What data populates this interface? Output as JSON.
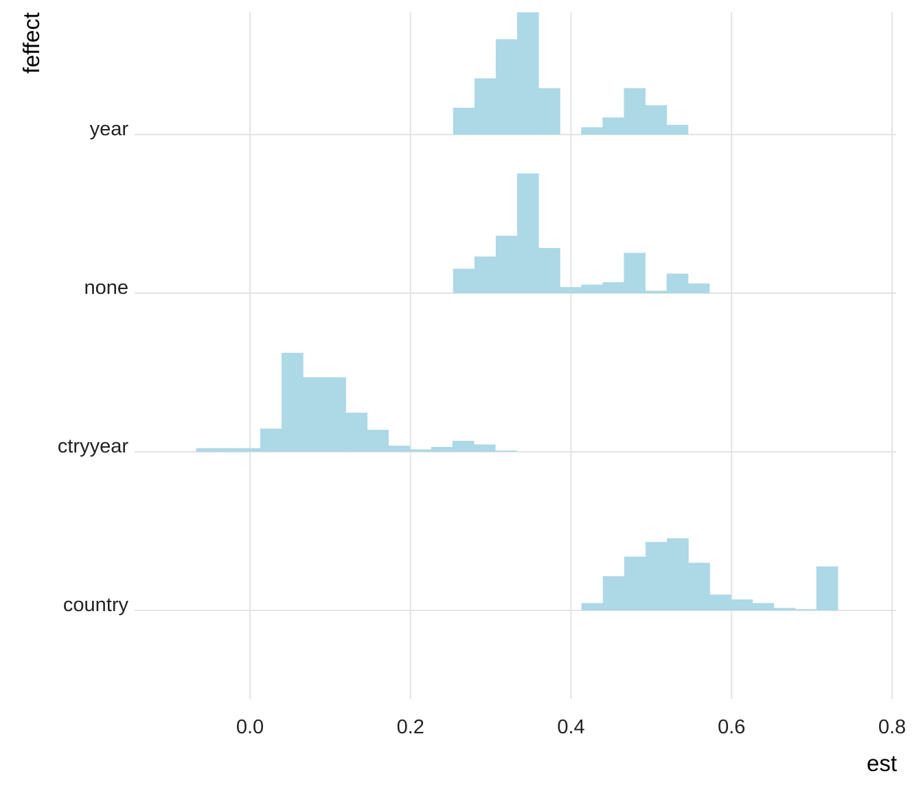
{
  "chart_data": {
    "type": "ridgeline-histogram",
    "title": "",
    "xlabel": "est",
    "ylabel": "feffect",
    "xlim": [
      -0.2,
      0.8
    ],
    "x_ticks": [
      "0.0",
      "0.2",
      "0.4",
      "0.6",
      "0.8"
    ],
    "x_tick_values": [
      0.0,
      0.2,
      0.4,
      0.6,
      0.8
    ],
    "bin_width": 0.0266,
    "bar_color": "#add8e6",
    "grid": true,
    "legend": "none",
    "groups": [
      {
        "name": "year",
        "bin_start": 0.253,
        "counts": [
          0.22,
          0.46,
          0.78,
          1.0,
          0.38,
          0,
          0.06,
          0.14,
          0.38,
          0.24,
          0.08
        ]
      },
      {
        "name": "none",
        "bin_start": 0.253,
        "counts": [
          0.2,
          0.3,
          0.47,
          0.98,
          0.37,
          0.05,
          0.07,
          0.09,
          0.33,
          0.02,
          0.16,
          0.08
        ]
      },
      {
        "name": "ctryyear",
        "bin_start": -0.067,
        "counts": [
          0.03,
          0.03,
          0.03,
          0.19,
          0.81,
          0.61,
          0.61,
          0.32,
          0.18,
          0.05,
          0.02,
          0.04,
          0.09,
          0.06,
          0.01
        ]
      },
      {
        "name": "country",
        "bin_start": 0.413,
        "counts": [
          0.06,
          0.28,
          0.44,
          0.56,
          0.59,
          0.39,
          0.13,
          0.09,
          0.06,
          0.02,
          0.01,
          0.36
        ]
      }
    ]
  }
}
